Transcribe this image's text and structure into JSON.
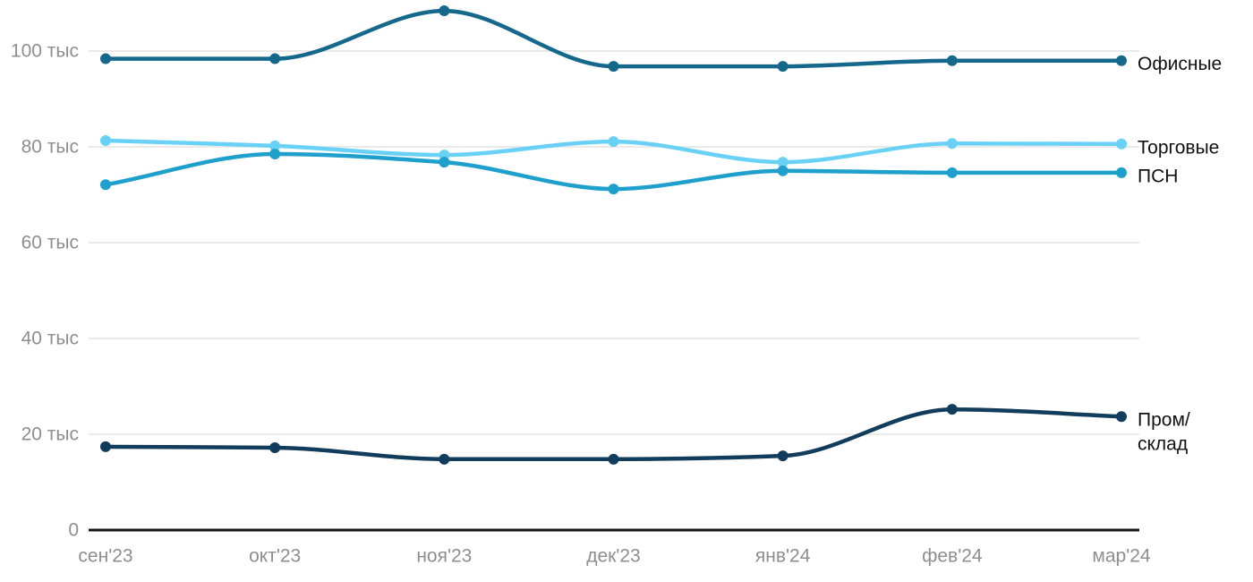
{
  "chart_data": {
    "type": "line",
    "title": "",
    "x_categories": [
      "сен'23",
      "окт'23",
      "ноя'23",
      "дек'23",
      "янв'24",
      "фев'24",
      "мар'24"
    ],
    "values_unit": "тыс",
    "y_axis": {
      "range": [
        0,
        112
      ],
      "ticks": [
        {
          "value": 0,
          "label": "0"
        },
        {
          "value": 20,
          "label": "20 тыс"
        },
        {
          "value": 40,
          "label": "40 тыс"
        },
        {
          "value": 60,
          "label": "60 тыс"
        },
        {
          "value": 80,
          "label": "80 тыс"
        },
        {
          "value": 100,
          "label": "100 тыс"
        }
      ]
    },
    "grid": "horizontal-only",
    "legend_position": "right-of-line-ends",
    "series": [
      {
        "name": "Офисные",
        "color": "#15688C",
        "label_lines": [
          "Офисные"
        ],
        "values": [
          98.4,
          98.4,
          108.4,
          96.8,
          96.8,
          98.0,
          98.0
        ]
      },
      {
        "name": "Торговые",
        "color": "#69D1F6",
        "label_lines": [
          "Торговые"
        ],
        "values": [
          81.3,
          80.2,
          78.3,
          81.1,
          76.8,
          80.7,
          80.6
        ]
      },
      {
        "name": "ПСН",
        "color": "#1FA0CC",
        "label_lines": [
          "ПСН"
        ],
        "values": [
          72.1,
          78.5,
          76.8,
          71.2,
          75.0,
          74.6,
          74.6
        ]
      },
      {
        "name": "Пром/склад",
        "color": "#123C5C",
        "label_lines": [
          "Пром/",
          "склад"
        ],
        "values": [
          17.4,
          17.2,
          14.8,
          14.8,
          15.5,
          25.2,
          23.7
        ]
      }
    ]
  },
  "styles": {
    "background_color": "#FFFFFF",
    "grid_color": "#E4E4E4",
    "axis_line_color": "#161616",
    "axis_text_color": "#8E8E8E",
    "legend_text_color": "#111111"
  }
}
